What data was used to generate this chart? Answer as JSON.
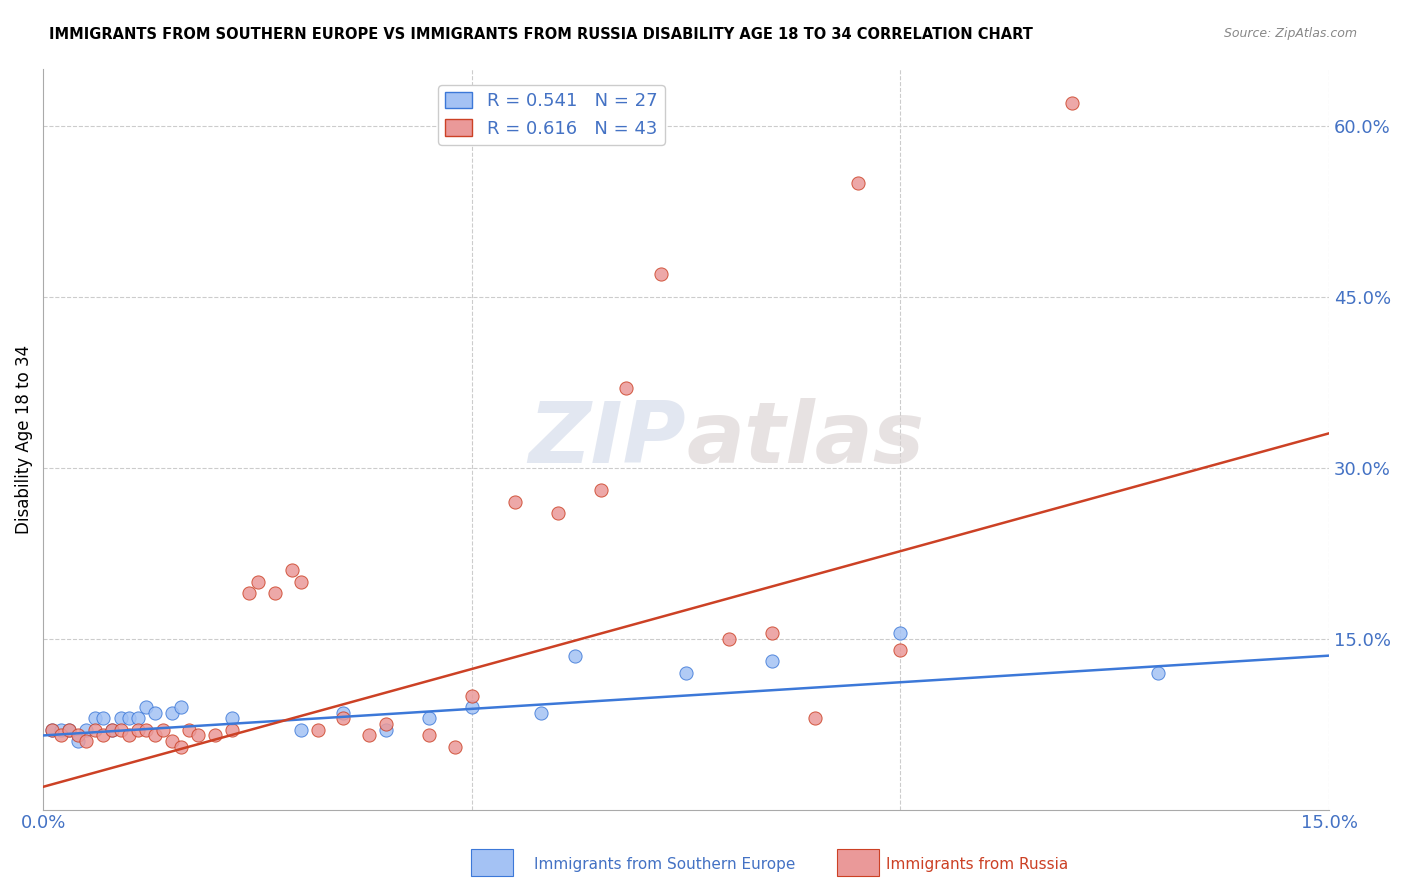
{
  "title": "IMMIGRANTS FROM SOUTHERN EUROPE VS IMMIGRANTS FROM RUSSIA DISABILITY AGE 18 TO 34 CORRELATION CHART",
  "source": "Source: ZipAtlas.com",
  "ylabel": "Disability Age 18 to 34",
  "x_min": 0.0,
  "x_max": 0.15,
  "y_min": 0.0,
  "y_max": 0.65,
  "y_ticks": [
    0.15,
    0.3,
    0.45,
    0.6
  ],
  "x_ticks": [
    0.0,
    0.05,
    0.1,
    0.15
  ],
  "y_tick_labels": [
    "15.0%",
    "30.0%",
    "45.0%",
    "60.0%"
  ],
  "legend_blue_R": "R = 0.541",
  "legend_blue_N": "N = 27",
  "legend_pink_R": "R = 0.616",
  "legend_pink_N": "N = 43",
  "legend_blue_label": "Immigrants from Southern Europe",
  "legend_pink_label": "Immigrants from Russia",
  "blue_color": "#a4c2f4",
  "pink_color": "#ea9999",
  "blue_line_color": "#3c78d8",
  "pink_line_color": "#cc4125",
  "text_color_blue": "#4472c4",
  "watermark_zip": "ZIP",
  "watermark_atlas": "atlas",
  "blue_scatter_x": [
    0.001,
    0.002,
    0.003,
    0.004,
    0.005,
    0.006,
    0.007,
    0.008,
    0.009,
    0.01,
    0.011,
    0.012,
    0.013,
    0.015,
    0.016,
    0.022,
    0.03,
    0.035,
    0.04,
    0.045,
    0.05,
    0.058,
    0.062,
    0.075,
    0.085,
    0.1,
    0.13
  ],
  "blue_scatter_y": [
    0.07,
    0.07,
    0.07,
    0.06,
    0.07,
    0.08,
    0.08,
    0.07,
    0.08,
    0.08,
    0.08,
    0.09,
    0.085,
    0.085,
    0.09,
    0.08,
    0.07,
    0.085,
    0.07,
    0.08,
    0.09,
    0.085,
    0.135,
    0.12,
    0.13,
    0.155,
    0.12
  ],
  "pink_scatter_x": [
    0.001,
    0.002,
    0.003,
    0.004,
    0.005,
    0.006,
    0.007,
    0.008,
    0.009,
    0.01,
    0.011,
    0.012,
    0.013,
    0.014,
    0.015,
    0.016,
    0.017,
    0.018,
    0.02,
    0.022,
    0.024,
    0.025,
    0.027,
    0.029,
    0.03,
    0.032,
    0.035,
    0.038,
    0.04,
    0.045,
    0.048,
    0.05,
    0.055,
    0.06,
    0.065,
    0.068,
    0.072,
    0.08,
    0.085,
    0.09,
    0.095,
    0.1,
    0.12
  ],
  "pink_scatter_y": [
    0.07,
    0.065,
    0.07,
    0.065,
    0.06,
    0.07,
    0.065,
    0.07,
    0.07,
    0.065,
    0.07,
    0.07,
    0.065,
    0.07,
    0.06,
    0.055,
    0.07,
    0.065,
    0.065,
    0.07,
    0.19,
    0.2,
    0.19,
    0.21,
    0.2,
    0.07,
    0.08,
    0.065,
    0.075,
    0.065,
    0.055,
    0.1,
    0.27,
    0.26,
    0.28,
    0.37,
    0.47,
    0.15,
    0.155,
    0.08,
    0.55,
    0.14,
    0.62
  ],
  "blue_line_x": [
    0.0,
    0.15
  ],
  "blue_line_y": [
    0.065,
    0.135
  ],
  "pink_line_x": [
    0.0,
    0.15
  ],
  "pink_line_y": [
    0.02,
    0.33
  ]
}
